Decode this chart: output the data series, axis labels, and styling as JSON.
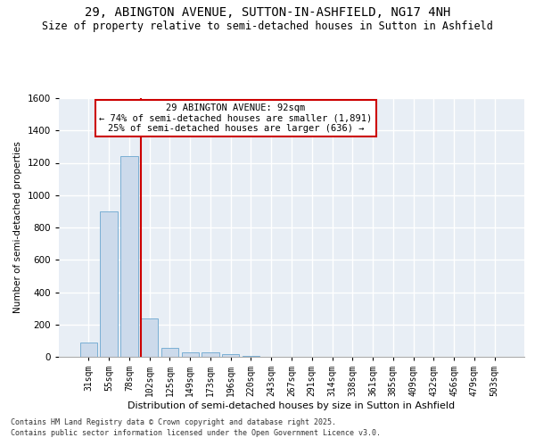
{
  "title1": "29, ABINGTON AVENUE, SUTTON-IN-ASHFIELD, NG17 4NH",
  "title2": "Size of property relative to semi-detached houses in Sutton in Ashfield",
  "xlabel": "Distribution of semi-detached houses by size in Sutton in Ashfield",
  "ylabel": "Number of semi-detached properties",
  "categories": [
    "31sqm",
    "55sqm",
    "78sqm",
    "102sqm",
    "125sqm",
    "149sqm",
    "173sqm",
    "196sqm",
    "220sqm",
    "243sqm",
    "267sqm",
    "291sqm",
    "314sqm",
    "338sqm",
    "361sqm",
    "385sqm",
    "409sqm",
    "432sqm",
    "456sqm",
    "479sqm",
    "503sqm"
  ],
  "values": [
    90,
    900,
    1240,
    235,
    55,
    30,
    25,
    18,
    5,
    2,
    1,
    0,
    0,
    0,
    0,
    0,
    0,
    0,
    0,
    0,
    0
  ],
  "bar_color": "#ccdaeb",
  "bar_edge_color": "#7aafd4",
  "vline_color": "#cc0000",
  "annotation_line1": "29 ABINGTON AVENUE: 92sqm",
  "annotation_line2": "← 74% of semi-detached houses are smaller (1,891)",
  "annotation_line3": "25% of semi-detached houses are larger (636) →",
  "annotation_box_color": "#cc0000",
  "background_color": "#e8eef5",
  "grid_color": "#ffffff",
  "ylim": [
    0,
    1600
  ],
  "yticks": [
    0,
    200,
    400,
    600,
    800,
    1000,
    1200,
    1400,
    1600
  ],
  "footer1": "Contains HM Land Registry data © Crown copyright and database right 2025.",
  "footer2": "Contains public sector information licensed under the Open Government Licence v3.0.",
  "title1_fontsize": 10,
  "title2_fontsize": 8.5,
  "tick_fontsize": 7,
  "ylabel_fontsize": 7.5,
  "xlabel_fontsize": 8
}
